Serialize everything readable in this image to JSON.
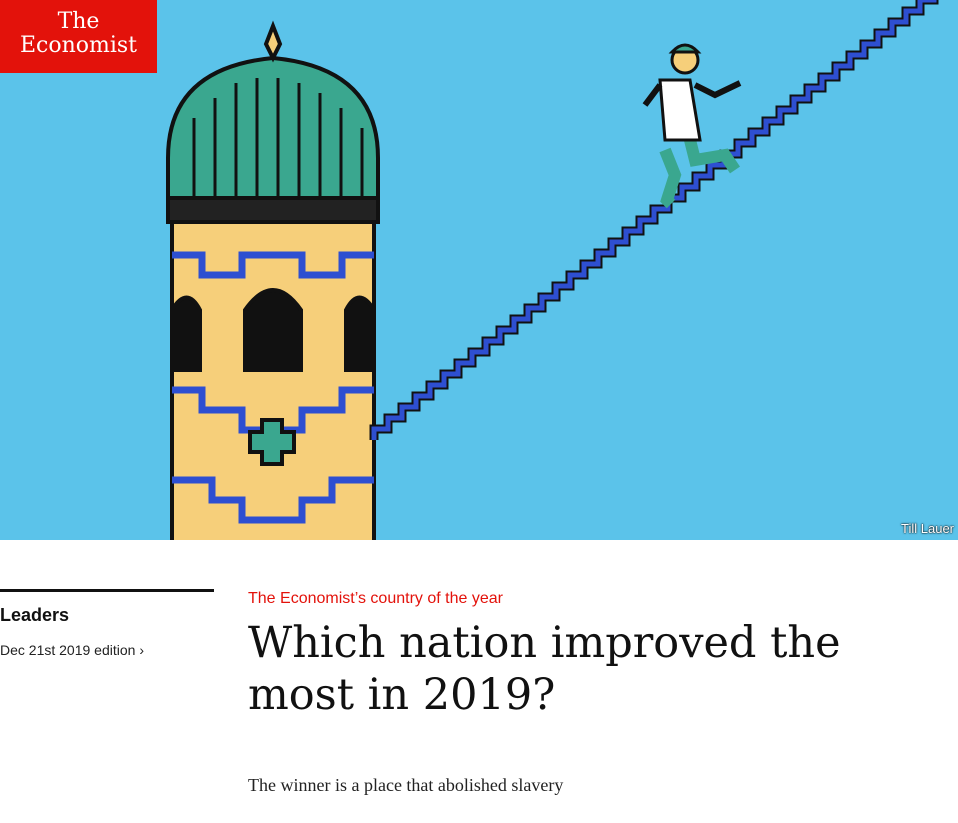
{
  "logo": {
    "line1": "The",
    "line2": "Economist"
  },
  "hero": {
    "credit": "Till Lauer",
    "colors": {
      "sky": "#5bc3ea",
      "stairs": "#2e4fd1",
      "dome": "#3aa78f",
      "tower": "#f6cf7a"
    }
  },
  "sidebar": {
    "section": "Leaders",
    "edition": "Dec 21st 2019 edition ›"
  },
  "article": {
    "rubric": "The Economist’s country of the year",
    "headline": "Which nation improved the most in 2019?",
    "subheading": "The winner is a place that abolished slavery"
  },
  "colors": {
    "brand": "#e3120b"
  }
}
